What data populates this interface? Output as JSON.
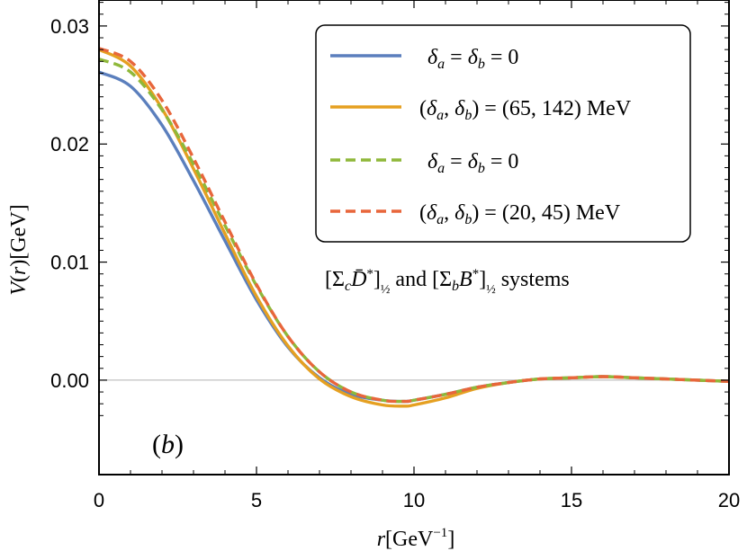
{
  "chart_data": {
    "type": "line",
    "title": "",
    "xlabel": "r[GeV⁻¹]",
    "ylabel": "V(r)[GeV]",
    "xlim": [
      0,
      20
    ],
    "ylim": [
      -0.008,
      0.0322
    ],
    "xticks": [
      0,
      5,
      10,
      15,
      20
    ],
    "xtick_labels": [
      "0",
      "5",
      "10",
      "15",
      "20"
    ],
    "yticks": [
      0.0,
      0.01,
      0.02,
      0.03
    ],
    "ytick_labels": [
      "0.00",
      "0.01",
      "0.02",
      "0.03"
    ],
    "grid": false,
    "legend_position": "top-right",
    "x": [
      0,
      1,
      2,
      3,
      4,
      5,
      6,
      7,
      8,
      9,
      9.7,
      10,
      11,
      12,
      13,
      14,
      15,
      16,
      17,
      18,
      19,
      20
    ],
    "series": [
      {
        "name": "δa = δb = 0",
        "color": "#5b7fbd",
        "style": "solid",
        "values": [
          0.0261,
          0.0249,
          0.0216,
          0.0169,
          0.0118,
          0.0068,
          0.0028,
          0.0002,
          -0.0012,
          -0.0017,
          -0.0018,
          -0.0017,
          -0.0012,
          -0.0006,
          -0.0002,
          0.0001,
          0.0002,
          0.0003,
          0.0002,
          0.0001,
          0.0,
          -0.0001
        ]
      },
      {
        "name": "(δa, δb) = (65, 142) MeV",
        "color": "#e5a021",
        "style": "solid",
        "values": [
          0.028,
          0.0266,
          0.023,
          0.0179,
          0.0124,
          0.0071,
          0.0029,
          0.0001,
          -0.0014,
          -0.0021,
          -0.0022,
          -0.0021,
          -0.0015,
          -0.0007,
          -0.0002,
          0.0001,
          0.0002,
          0.0003,
          0.0002,
          0.0001,
          0.0,
          -0.0001
        ]
      },
      {
        "name": "δa = δb = 0",
        "color": "#8fb83a",
        "style": "dashed",
        "values": [
          0.0272,
          0.0261,
          0.0229,
          0.0183,
          0.0131,
          0.008,
          0.0037,
          0.0007,
          -0.001,
          -0.0017,
          -0.0018,
          -0.0017,
          -0.0012,
          -0.0006,
          -0.0002,
          0.0001,
          0.0002,
          0.0003,
          0.0002,
          0.0001,
          0.0,
          -0.0001
        ]
      },
      {
        "name": "(δa, δb) = (20, 45) MeV",
        "color": "#e8663b",
        "style": "dashed",
        "values": [
          0.0281,
          0.027,
          0.0237,
          0.0188,
          0.0134,
          0.0081,
          0.0037,
          0.0007,
          -0.001,
          -0.0017,
          -0.0018,
          -0.0017,
          -0.0012,
          -0.0006,
          -0.0002,
          0.0001,
          0.0002,
          0.0003,
          0.0002,
          0.0001,
          0.0,
          -0.0001
        ]
      }
    ],
    "annotations": [
      {
        "text": "[Σc D̄*]½ and [Σb B*]½ systems"
      },
      {
        "text": "(b)"
      }
    ]
  }
}
